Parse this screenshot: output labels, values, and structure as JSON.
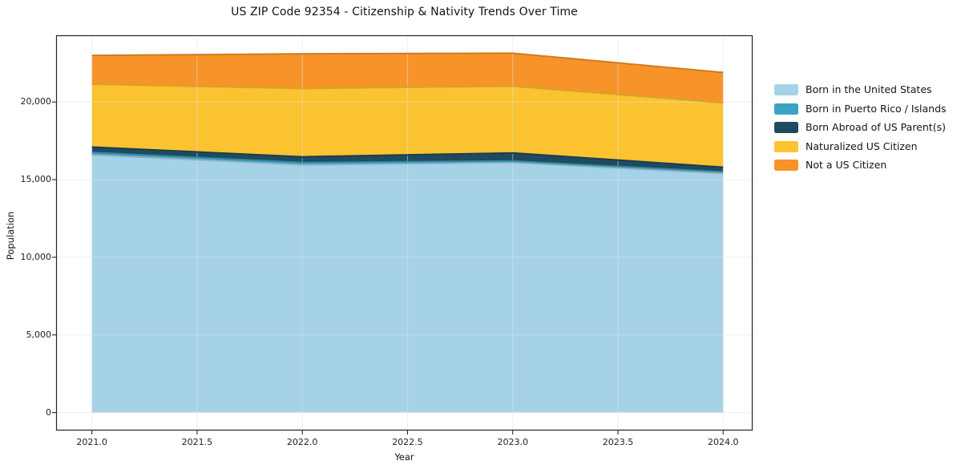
{
  "title": "US ZIP Code 92354 - Citizenship & Nativity Trends Over Time",
  "axes": {
    "x_label": "Year",
    "y_label": "Population",
    "x_tick_labels": [
      "2021.0",
      "2021.5",
      "2022.0",
      "2022.5",
      "2023.0",
      "2023.5",
      "2024.0"
    ],
    "y_tick_labels": [
      "0",
      "5,000",
      "10,000",
      "15,000",
      "20,000"
    ]
  },
  "chart_data": {
    "type": "area",
    "stacked": true,
    "title": "US ZIP Code 92354 - Citizenship & Nativity Trends Over Time",
    "xlabel": "Year",
    "ylabel": "Population",
    "x": [
      2021,
      2022,
      2023,
      2024
    ],
    "series": [
      {
        "name": "Born in the United States",
        "color": "#a6d2e7",
        "values": [
          16600,
          15950,
          16100,
          15400
        ]
      },
      {
        "name": "Born in Puerto Rico / Islands",
        "color": "#39a5c6",
        "values": [
          150,
          150,
          100,
          100
        ]
      },
      {
        "name": "Born Abroad of US Parent(s)",
        "color": "#1f4a5f",
        "values": [
          350,
          370,
          520,
          300
        ]
      },
      {
        "name": "Naturalized US Citizen",
        "color": "#fcc330",
        "values": [
          4050,
          4400,
          4300,
          4150
        ]
      },
      {
        "name": "Not a US Citizen",
        "color": "#f79329",
        "values": [
          1850,
          2230,
          2120,
          1950
        ]
      }
    ],
    "totals": [
      23000,
      23100,
      23140,
      21900
    ],
    "xlim": [
      2020.83,
      2024.14
    ],
    "ylim": [
      -1157,
      24297
    ],
    "xticks": [
      2021.0,
      2021.5,
      2022.0,
      2022.5,
      2023.0,
      2023.5,
      2024.0
    ],
    "yticks": [
      0,
      5000,
      10000,
      15000,
      20000
    ],
    "grid": true,
    "legend_position": "right-outside"
  },
  "colors": {
    "grid": "#e3e3e3",
    "spine": "#262626",
    "background": "#ffffff"
  }
}
